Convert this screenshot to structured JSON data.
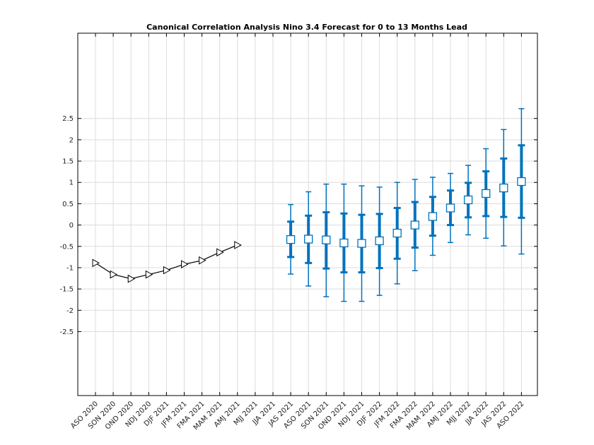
{
  "chart_data": {
    "type": "line",
    "title": "Canonical Correlation Analysis Nino 3.4 Forecast for 0 to 13 Months Lead",
    "xlabel": "",
    "ylabel": "",
    "categories": [
      "ASO 2020",
      "SON 2020",
      "OND 2020",
      "NDJ 2020",
      "DJF 2021",
      "JFM 2021",
      "FMA 2021",
      "MAM 2021",
      "AMJ 2021",
      "MJJ 2021",
      "JJA 2021",
      "JAS 2021",
      "ASO 2021",
      "SON 2021",
      "OND 2021",
      "NDJ 2021",
      "DJF 2022",
      "JFM 2022",
      "FMA 2022",
      "MAM 2022",
      "AMJ 2022",
      "MJJ 2022",
      "JJA 2022",
      "JAS 2022",
      "ASO 2022"
    ],
    "y_ticks": [
      {
        "value": 2.5,
        "label": "2.5"
      },
      {
        "value": 2,
        "label": "2"
      },
      {
        "value": 1.5,
        "label": "1.5"
      },
      {
        "value": 1,
        "label": "1"
      },
      {
        "value": 0.5,
        "label": "0.5"
      },
      {
        "value": 0,
        "label": "0"
      },
      {
        "value": -0.5,
        "label": "-0.5"
      },
      {
        "value": -1,
        "label": "-1"
      },
      {
        "value": -1.5,
        "label": "-1.5"
      },
      {
        "value": -2,
        "label": "-2"
      },
      {
        "value": -2.5,
        "label": "-2.5"
      }
    ],
    "ylim": [
      -4.0,
      4.5
    ],
    "grid": true,
    "series": [
      {
        "kind": "observed",
        "marker": "triangle-right",
        "color": "#000000",
        "points": [
          {
            "x": "ASO 2020",
            "y": -0.89
          },
          {
            "x": "SON 2020",
            "y": -1.16
          },
          {
            "x": "OND 2020",
            "y": -1.26
          },
          {
            "x": "NDJ 2020",
            "y": -1.16
          },
          {
            "x": "DJF 2021",
            "y": -1.06
          },
          {
            "x": "JFM 2021",
            "y": -0.92
          },
          {
            "x": "FMA 2021",
            "y": -0.83
          },
          {
            "x": "MAM 2021",
            "y": -0.64
          },
          {
            "x": "AMJ 2021",
            "y": -0.47
          }
        ]
      },
      {
        "kind": "forecast",
        "marker": "square",
        "color": "#0072bd",
        "points": [
          {
            "x": "JAS 2021",
            "y": -0.34,
            "inner": [
              -0.75,
              0.08
            ],
            "outer": [
              -1.15,
              0.48
            ]
          },
          {
            "x": "ASO 2021",
            "y": -0.33,
            "inner": [
              -0.89,
              0.22
            ],
            "outer": [
              -1.43,
              0.78
            ]
          },
          {
            "x": "SON 2021",
            "y": -0.35,
            "inner": [
              -1.02,
              0.3
            ],
            "outer": [
              -1.68,
              0.96
            ]
          },
          {
            "x": "OND 2021",
            "y": -0.42,
            "inner": [
              -1.11,
              0.27
            ],
            "outer": [
              -1.79,
              0.96
            ]
          },
          {
            "x": "NDJ 2021",
            "y": -0.43,
            "inner": [
              -1.11,
              0.24
            ],
            "outer": [
              -1.79,
              0.92
            ]
          },
          {
            "x": "DJF 2022",
            "y": -0.37,
            "inner": [
              -1.01,
              0.26
            ],
            "outer": [
              -1.65,
              0.89
            ]
          },
          {
            "x": "JFM 2022",
            "y": -0.19,
            "inner": [
              -0.79,
              0.4
            ],
            "outer": [
              -1.38,
              1.0
            ]
          },
          {
            "x": "FMA 2022",
            "y": 0.0,
            "inner": [
              -0.53,
              0.54
            ],
            "outer": [
              -1.07,
              1.07
            ]
          },
          {
            "x": "MAM 2022",
            "y": 0.2,
            "inner": [
              -0.25,
              0.66
            ],
            "outer": [
              -0.71,
              1.12
            ]
          },
          {
            "x": "AMJ 2022",
            "y": 0.4,
            "inner": [
              0.0,
              0.81
            ],
            "outer": [
              -0.41,
              1.21
            ]
          },
          {
            "x": "MJJ 2022",
            "y": 0.59,
            "inner": [
              0.18,
              0.99
            ],
            "outer": [
              -0.23,
              1.4
            ]
          },
          {
            "x": "JJA 2022",
            "y": 0.74,
            "inner": [
              0.21,
              1.26
            ],
            "outer": [
              -0.31,
              1.79
            ]
          },
          {
            "x": "JAS 2022",
            "y": 0.87,
            "inner": [
              0.19,
              1.56
            ],
            "outer": [
              -0.49,
              2.24
            ]
          },
          {
            "x": "ASO 2022",
            "y": 1.02,
            "inner": [
              0.17,
              1.87
            ],
            "outer": [
              -0.68,
              2.73
            ]
          }
        ]
      }
    ]
  }
}
